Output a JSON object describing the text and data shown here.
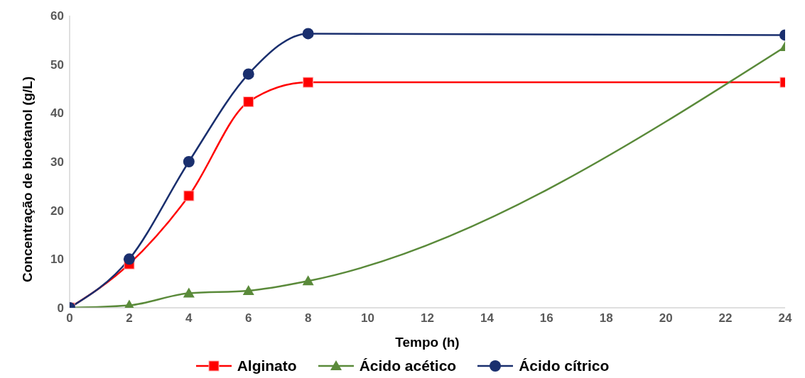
{
  "chart_data": {
    "type": "line",
    "xlabel": "Tempo (h)",
    "ylabel": "Concentração de bioetanol (g/L)",
    "x": [
      0,
      2,
      4,
      6,
      8,
      24
    ],
    "xlim": [
      0,
      24
    ],
    "xticks": [
      0,
      2,
      4,
      6,
      8,
      10,
      12,
      14,
      16,
      18,
      20,
      22,
      24
    ],
    "ylim": [
      0,
      60
    ],
    "yticks": [
      0,
      10,
      20,
      30,
      40,
      50,
      60
    ],
    "legend": "bottom",
    "series": [
      {
        "name": "Alginato",
        "color": "#ff0000",
        "marker": "square",
        "values": [
          0,
          9,
          23,
          42.3,
          46.3,
          46.3
        ]
      },
      {
        "name": "Ácido acético",
        "color": "#5a8a3a",
        "marker": "triangle",
        "values": [
          0,
          0.5,
          3,
          3.5,
          5.5,
          53.6
        ]
      },
      {
        "name": "Ácido cítrico",
        "color": "#1a2f6e",
        "marker": "circle",
        "values": [
          0,
          10,
          30,
          48,
          56.3,
          56
        ]
      }
    ]
  }
}
